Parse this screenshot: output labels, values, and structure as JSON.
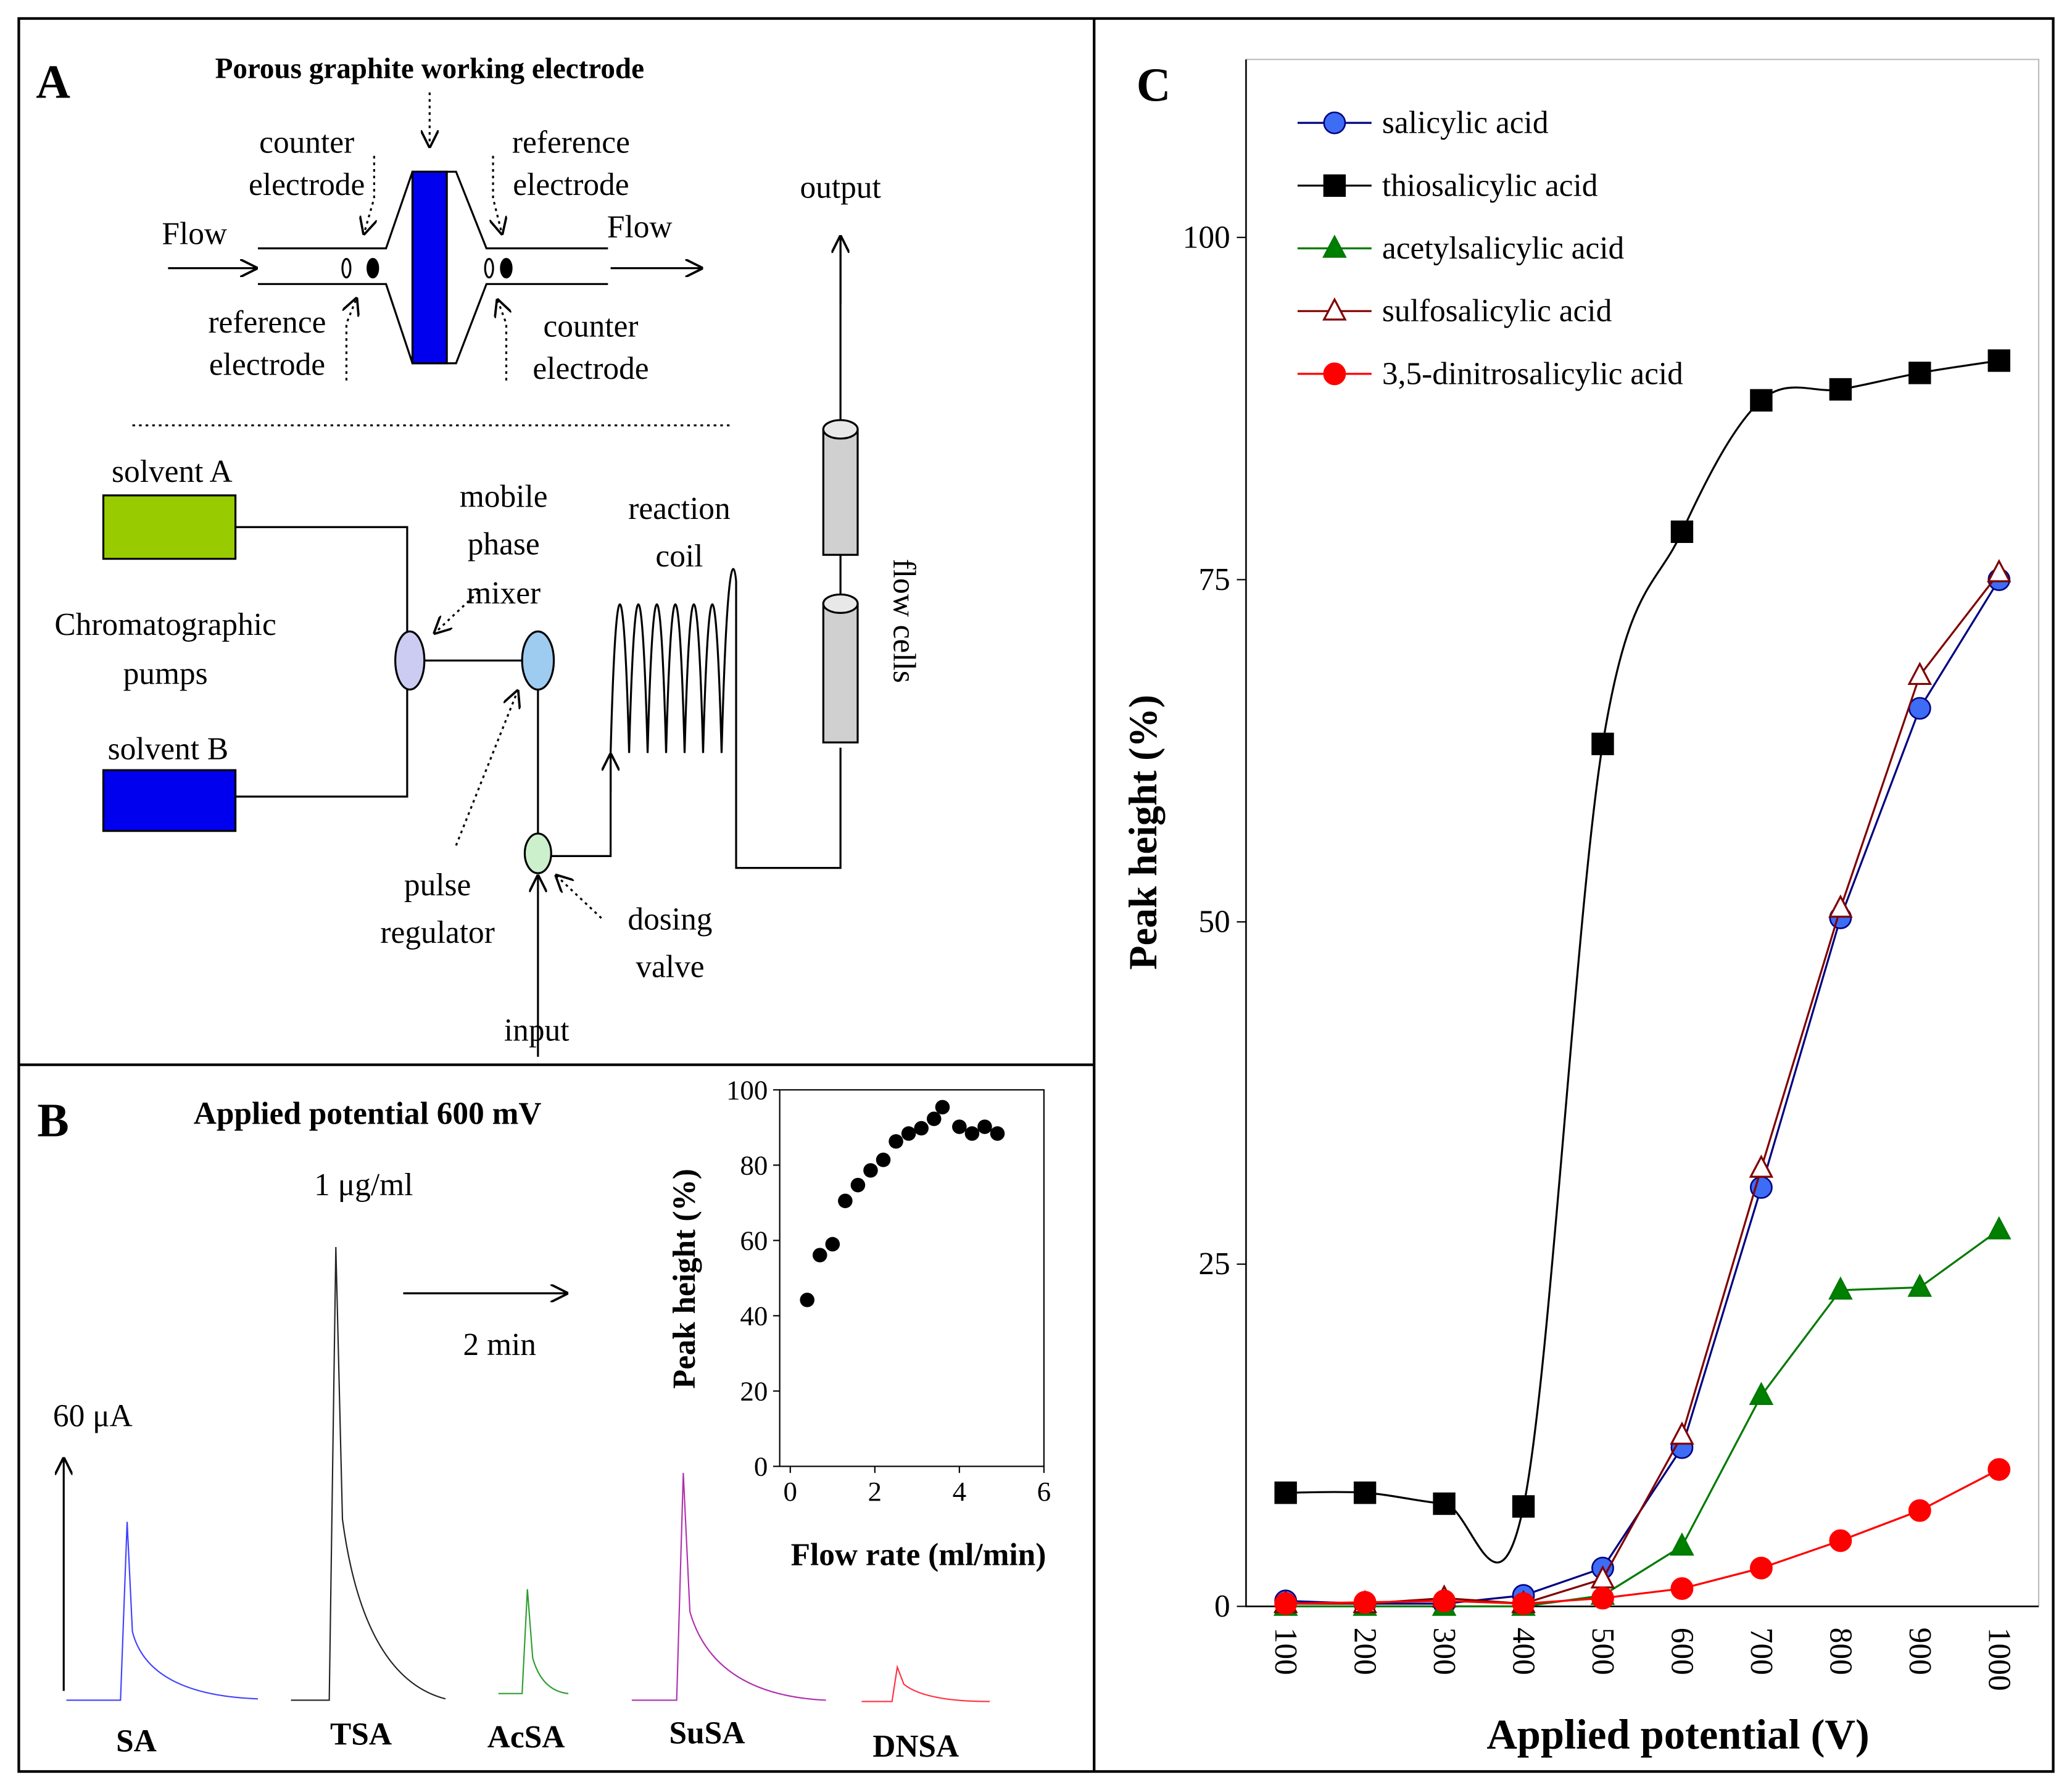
{
  "diagram": {
    "panel": "A",
    "electrode_title": "Porous graphite working electrode",
    "counter_top": [
      "counter",
      "electrode"
    ],
    "reference_top": [
      "reference",
      "electrode"
    ],
    "flow_in": "Flow",
    "flow_out": "Flow",
    "reference_bottom": [
      "reference",
      "electrode"
    ],
    "counter_bottom": [
      "counter",
      "electrode"
    ],
    "output": "output",
    "solvent_a": "solvent A",
    "solvent_b": "solvent B",
    "mixer": [
      "mobile",
      "phase",
      "mixer"
    ],
    "coil": [
      "reaction",
      "coil"
    ],
    "flow_cells": "flow cells",
    "pumps": [
      "Chromatographic",
      "pumps"
    ],
    "pulse": [
      "pulse",
      "regulator"
    ],
    "valve": [
      "dosing",
      "valve"
    ],
    "input": "input"
  },
  "traces": {
    "panel": "B",
    "title": "Applied potential 600 mV",
    "concentration": "1 μg/ml",
    "time_scale": "2 min",
    "current_scale": "60 μA",
    "labels": [
      "SA",
      "TSA",
      "AcSA",
      "SuSA",
      "DNSA"
    ]
  },
  "chart_data": [
    {
      "type": "scatter",
      "x_label": "Flow rate (ml/min)",
      "y_label": "Peak height (%)",
      "x": [
        0.4,
        0.7,
        1.0,
        1.3,
        1.6,
        1.9,
        2.2,
        2.5,
        2.8,
        3.1,
        3.4,
        3.6,
        4.0,
        4.3,
        4.6,
        4.9
      ],
      "values": [
        44.2,
        56.1,
        59,
        70.5,
        74.7,
        78.6,
        81.4,
        86.3,
        88.4,
        89.8,
        92.3,
        95.4,
        90.2,
        88.4,
        90.2,
        88.4
      ],
      "color": "#000000",
      "xlim": [
        -0.25,
        6
      ],
      "xticks": [
        0,
        2,
        4,
        6
      ],
      "ylim": [
        0,
        100
      ],
      "yticks": [
        0,
        20,
        40,
        60,
        80,
        100
      ]
    },
    {
      "type": "line",
      "panel": "C",
      "x_label": "Applied potential (V)",
      "y_label": "Peak height (%)",
      "categories": [
        "100",
        "200",
        "300",
        "400",
        "500",
        "600",
        "700",
        "800",
        "900",
        "1000"
      ],
      "ylim": [
        0,
        113
      ],
      "yticks": [
        0,
        25,
        50,
        75,
        100
      ],
      "legend": "top-left",
      "series": [
        {
          "name": "salicylic acid",
          "color": "#000080",
          "marker": "circle",
          "marker_fill": "#3d6cf5",
          "values": [
            0.4,
            0.2,
            0.2,
            0.8,
            2.8,
            11.6,
            30.6,
            50.3,
            65.6,
            75
          ]
        },
        {
          "name": "thiosalicylic acid",
          "color": "#000000",
          "marker": "square",
          "marker_fill": "#000000",
          "smooth": true,
          "values": [
            8.3,
            8.3,
            7.5,
            7.3,
            63,
            78.5,
            88.1,
            88.9,
            90.1,
            91
          ]
        },
        {
          "name": "acetylsalicylic acid",
          "color": "#007a00",
          "marker": "triangle",
          "marker_fill": "#008000",
          "values": [
            0,
            0,
            0,
            0,
            0.8,
            4.4,
            15.4,
            23.1,
            23.3,
            27.5
          ]
        },
        {
          "name": "sulfosalicylic acid",
          "color": "#800000",
          "marker": "triangle",
          "marker_fill": "#ffffff",
          "values": [
            0.2,
            0.2,
            0.6,
            0.2,
            2.0,
            12.5,
            32,
            51,
            68,
            75.5
          ]
        },
        {
          "name": "3,5-dinitrosalicylic acid",
          "color": "#ff0000",
          "marker": "circle",
          "marker_fill": "#ff0000",
          "values": [
            0.2,
            0.3,
            0.4,
            0.2,
            0.6,
            1.3,
            2.8,
            4.8,
            7.0,
            10
          ]
        }
      ]
    }
  ]
}
